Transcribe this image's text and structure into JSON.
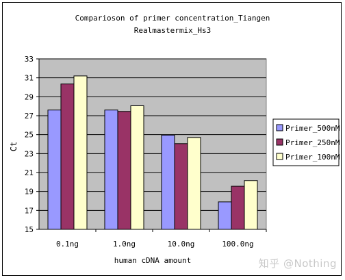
{
  "chart_data": {
    "type": "bar",
    "title_lines": [
      "Comparioson of primer concentration_Tiangen",
      "Realmastermix_Hs3"
    ],
    "xlabel": "human cDNA amount",
    "ylabel": "Ct",
    "categories": [
      "0.1ng",
      "1.0ng",
      "10.0ng",
      "100.0ng"
    ],
    "ylim": [
      15,
      33
    ],
    "yticks": [
      15,
      17,
      19,
      21,
      23,
      25,
      27,
      29,
      31,
      33
    ],
    "grid": true,
    "legend_position": "right",
    "series": [
      {
        "name": "Primer_500nM",
        "color": "#9999ff",
        "values": [
          27.6,
          27.6,
          24.95,
          17.9
        ]
      },
      {
        "name": "Primer_250nM",
        "color": "#993366",
        "values": [
          30.35,
          27.45,
          24.05,
          19.55
        ]
      },
      {
        "name": "Primer_100nM",
        "color": "#ffffcc",
        "values": [
          31.2,
          28.05,
          24.7,
          20.15
        ]
      }
    ],
    "plot_background": "#c0c0c0"
  },
  "watermark": "知乎 @Nothing"
}
